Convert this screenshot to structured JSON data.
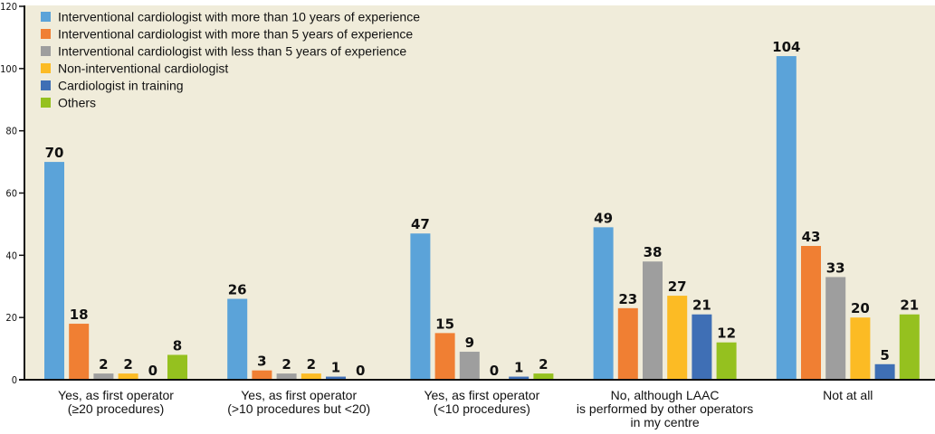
{
  "chart_data": {
    "type": "bar",
    "title": "",
    "xlabel": "",
    "ylabel": "",
    "ylim": [
      0,
      120
    ],
    "yticks": [
      "0",
      "20",
      "40",
      "60",
      "80",
      "100",
      "120"
    ],
    "grid": false,
    "legend_position": "top-left",
    "categories": [
      [
        "Yes, as first operator",
        "(≥20 procedures)"
      ],
      [
        "Yes, as first operator",
        "(>10 procedures but <20)"
      ],
      [
        "Yes, as first operator",
        "(<10 procedures)"
      ],
      [
        "No, although LAAC",
        "is performed by other operators",
        "in my centre"
      ],
      [
        "Not at all"
      ]
    ],
    "series": [
      {
        "name": "Interventional cardiologist with more than 10 years of experience",
        "color": "#5ba3d9",
        "values": [
          70,
          26,
          47,
          49,
          104
        ],
        "labels": [
          "70",
          "26",
          "47",
          "49",
          "104"
        ]
      },
      {
        "name": "Interventional cardiologist with more than 5 years of experience",
        "color": "#f07f33",
        "values": [
          18,
          3,
          15,
          23,
          43
        ],
        "labels": [
          "18",
          "3",
          "15",
          "23",
          "43"
        ]
      },
      {
        "name": "Interventional cardiologist with less than 5 years of experience",
        "color": "#9e9e9e",
        "values": [
          2,
          2,
          9,
          38,
          33
        ],
        "labels": [
          "2",
          "2",
          "9",
          "38",
          "33"
        ]
      },
      {
        "name": "Non-interventional cardiologist",
        "color": "#fcbb24",
        "values": [
          2,
          2,
          0,
          27,
          20
        ],
        "labels": [
          "2",
          "2",
          "0",
          "27",
          "20"
        ]
      },
      {
        "name": "Cardiologist in training",
        "color": "#3f6fb5",
        "values": [
          0,
          1,
          1,
          21,
          5
        ],
        "labels": [
          "0",
          "1",
          "1",
          "21",
          "5"
        ]
      },
      {
        "name": "Others",
        "color": "#95c11f",
        "values": [
          8,
          0,
          2,
          12,
          21
        ],
        "labels": [
          "8",
          "0",
          "2",
          "12",
          "21"
        ]
      }
    ],
    "colors": {
      "plot_background": "#f0ecda",
      "axis": "#111111"
    }
  }
}
